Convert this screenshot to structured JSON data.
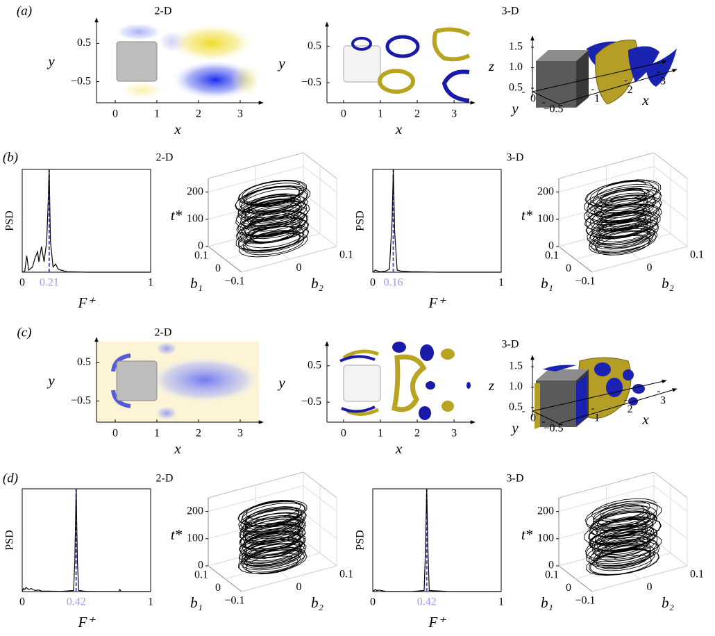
{
  "panels": [
    {
      "label": "(a)",
      "title_left": "2-D",
      "title_right": "3-D",
      "contour": {
        "xlim": [
          -0.45,
          3.45
        ],
        "ylim": [
          -1.05,
          1.05
        ],
        "xticks": [
          0,
          1,
          2,
          3
        ],
        "yticks": [
          {
            "value": -0.5,
            "label": "−0.5"
          },
          0.5
        ],
        "xlabel": "x",
        "ylabel": "y"
      },
      "isosurface": {
        "xlim": [
          -0.45,
          3.45
        ],
        "ylim": [
          -1.05,
          1.05
        ],
        "xticks": [
          0,
          1,
          2,
          3
        ],
        "yticks": [
          {
            "value": -0.5,
            "label": "−0.5"
          },
          0.5
        ],
        "xlabel": "x",
        "ylabel": "y"
      },
      "view3d": {
        "xlim": [
          1,
          3
        ],
        "xticks": [
          1,
          2,
          3
        ],
        "ylim": [
          -0.5,
          0
        ],
        "yticks": [
          {
            "value": -0.5,
            "label": "−0.5"
          },
          0
        ],
        "zlim": [
          0.5,
          1.5
        ],
        "zticks": [
          0.5,
          {
            "value": 1,
            "label": "1.0"
          },
          1.5
        ],
        "xlabel": "x",
        "ylabel": "y",
        "zlabel": "z"
      }
    },
    {
      "label": "(b)",
      "title_left": "2-D",
      "title_right": "3-D",
      "spectra": [
        {
          "xlim": [
            0,
            1
          ],
          "ylim": [
            0,
            1
          ],
          "xticks": [
            0,
            1
          ],
          "peak": 0.21,
          "peak_color": "#9a9aee",
          "xlabel": "F⁺",
          "ylabel": "PSD",
          "f": [
            0,
            0.02,
            0.035,
            0.05,
            0.08,
            0.1,
            0.12,
            0.13,
            0.15,
            0.17,
            0.19,
            0.2,
            0.21,
            0.22,
            0.24,
            0.26,
            0.28,
            0.3,
            0.35,
            0.5,
            0.7,
            1
          ],
          "psd": [
            0,
            0.01,
            0.16,
            0.02,
            0.05,
            0.14,
            0.2,
            0.1,
            0.25,
            0.1,
            0.3,
            0.6,
            1,
            0.3,
            0.05,
            0.08,
            0.03,
            0.02,
            0.005,
            0,
            0,
            0
          ]
        },
        {
          "xlim": [
            0,
            1
          ],
          "ylim": [
            0,
            1
          ],
          "xticks": [
            0,
            1
          ],
          "peak": 0.16,
          "peak_color": "#9a9aee",
          "xlabel": "F⁺",
          "ylabel": "PSD",
          "f": [
            0,
            0.02,
            0.04,
            0.06,
            0.1,
            0.13,
            0.15,
            0.16,
            0.17,
            0.19,
            0.22,
            0.3,
            0.5,
            1
          ],
          "psd": [
            0,
            0.02,
            0.01,
            0.005,
            0.01,
            0.03,
            0.5,
            1,
            0.4,
            0.02,
            0.01,
            0.005,
            0,
            0
          ]
        }
      ],
      "trajectories": [
        {
          "tlim": [
            0,
            250
          ],
          "tticks": [
            0,
            100,
            200
          ],
          "b1lim": [
            -0.1,
            0.1
          ],
          "b1ticks": [
            {
              "value": -0.1,
              "label": "−0.1"
            },
            0,
            0.1
          ],
          "b2lim": [
            -0.1,
            0.1
          ],
          "b2ticks": [
            0,
            0.1
          ],
          "tlabel": "t*",
          "b1label": "b₁",
          "b2label": "b₂"
        },
        {
          "tlim": [
            0,
            250
          ],
          "tticks": [
            0,
            100,
            200
          ],
          "b1lim": [
            -0.1,
            0.1
          ],
          "b1ticks": [
            {
              "value": -0.1,
              "label": "−0.1"
            },
            0,
            0.1
          ],
          "b2lim": [
            -0.1,
            0.1
          ],
          "b2ticks": [
            0,
            0.1
          ],
          "tlabel": "t*",
          "b1label": "b₁",
          "b2label": "b₂"
        }
      ]
    },
    {
      "label": "(c)",
      "title_left": "2-D",
      "title_right": "3-D",
      "contour": {
        "xlim": [
          -0.45,
          3.45
        ],
        "ylim": [
          -1.05,
          1.05
        ],
        "xticks": [
          0,
          1,
          2,
          3
        ],
        "yticks": [
          {
            "value": -0.5,
            "label": "−0.5"
          },
          0.5
        ],
        "xlabel": "x",
        "ylabel": "y"
      },
      "isosurface": {
        "xlim": [
          -0.45,
          3.45
        ],
        "ylim": [
          -1.05,
          1.05
        ],
        "xticks": [
          0,
          1,
          2,
          3
        ],
        "yticks": [
          {
            "value": -0.5,
            "label": "−0.5"
          },
          0.5
        ],
        "xlabel": "x",
        "ylabel": "y"
      },
      "view3d": {
        "xlim": [
          1,
          3
        ],
        "xticks": [
          1,
          2,
          3
        ],
        "ylim": [
          -0.5,
          0
        ],
        "yticks": [
          {
            "value": -0.5,
            "label": "−0.5"
          },
          0
        ],
        "zlim": [
          0.5,
          1.5
        ],
        "zticks": [
          0.5,
          {
            "value": 1,
            "label": "1.0"
          },
          1.5
        ],
        "xlabel": "x",
        "ylabel": "y",
        "zlabel": "z"
      }
    },
    {
      "label": "(d)",
      "title_left": "2-D",
      "title_right": "3-D",
      "spectra": [
        {
          "xlim": [
            0,
            1
          ],
          "ylim": [
            0,
            1
          ],
          "xticks": [
            0,
            1
          ],
          "peak": 0.42,
          "peak_color": "#9a9aee",
          "xlabel": "F⁺",
          "ylabel": "PSD",
          "f": [
            0,
            0.01,
            0.02,
            0.03,
            0.05,
            0.07,
            0.1,
            0.13,
            0.15,
            0.2,
            0.3,
            0.4,
            0.41,
            0.42,
            0.43,
            0.44,
            0.5,
            0.6,
            0.75,
            0.76,
            0.77,
            0.9,
            1
          ],
          "psd": [
            0,
            0.03,
            0.02,
            0.04,
            0.02,
            0.03,
            0.01,
            0.015,
            0.005,
            0.005,
            0.002,
            0.01,
            0.3,
            1,
            0.3,
            0.01,
            0.002,
            0.001,
            0,
            0.02,
            0,
            0,
            0
          ]
        },
        {
          "xlim": [
            0,
            1
          ],
          "ylim": [
            0,
            1
          ],
          "xticks": [
            0,
            1
          ],
          "peak": 0.42,
          "peak_color": "#9a9aee",
          "xlabel": "F⁺",
          "ylabel": "PSD",
          "f": [
            0,
            0.02,
            0.03,
            0.05,
            0.1,
            0.3,
            0.4,
            0.41,
            0.42,
            0.43,
            0.44,
            0.6,
            1
          ],
          "psd": [
            0,
            0.02,
            0.01,
            0.015,
            0.002,
            0,
            0.01,
            0.4,
            1,
            0.4,
            0.01,
            0,
            0
          ]
        }
      ],
      "trajectories": [
        {
          "tlim": [
            0,
            250
          ],
          "tticks": [
            0,
            100,
            200
          ],
          "b1lim": [
            -0.1,
            0.1
          ],
          "b1ticks": [
            {
              "value": -0.1,
              "label": "−0.1"
            },
            0,
            0.1
          ],
          "b2lim": [
            -0.1,
            0.1
          ],
          "b2ticks": [
            0,
            0.1
          ],
          "tlabel": "t*",
          "b1label": "b₁",
          "b2label": "b₂"
        },
        {
          "tlim": [
            0,
            250
          ],
          "tticks": [
            0,
            100,
            200
          ],
          "b1lim": [
            -0.1,
            0.1
          ],
          "b1ticks": [
            {
              "value": -0.1,
              "label": "−0.1"
            },
            0,
            0.1
          ],
          "b2lim": [
            -0.1,
            0.1
          ],
          "b2ticks": [
            0,
            0.1
          ],
          "tlabel": "t*",
          "b1label": "b₁",
          "b2label": "b₂"
        }
      ]
    }
  ]
}
